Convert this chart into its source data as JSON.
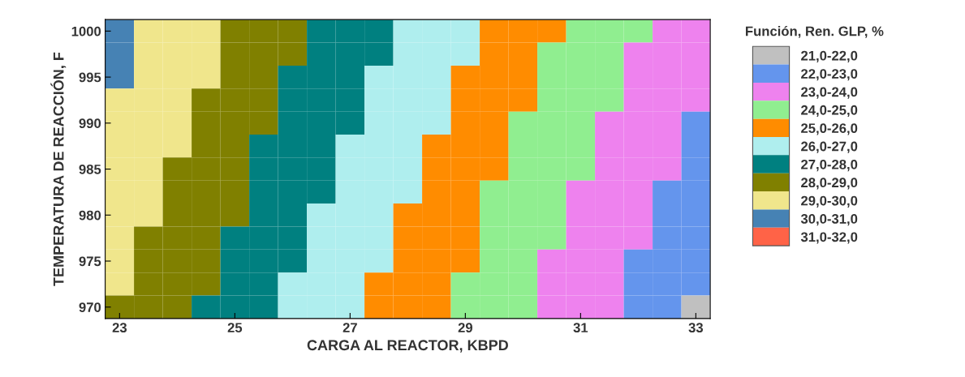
{
  "chart_data": {
    "type": "heatmap",
    "xlabel": "CARGA AL REACTOR, KBPD",
    "ylabel": "TEMPERATURA DE REACCIÓN, F",
    "legend_title": "Función, Ren. GLP, %",
    "categories": [
      "23",
      null,
      null,
      null,
      "25",
      null,
      null,
      null,
      "27",
      null,
      null,
      null,
      "29",
      null,
      null,
      null,
      "31",
      null,
      null,
      null,
      "33"
    ],
    "y_categories": [
      "1000",
      null,
      "995",
      null,
      "990",
      null,
      "985",
      null,
      "980",
      null,
      "975",
      null,
      "970"
    ],
    "cells": [
      [
        30.3,
        29.9,
        29.6,
        29.2,
        28.9,
        28.5,
        28.2,
        27.8,
        27.5,
        27.1,
        26.8,
        26.4,
        26.1,
        25.7,
        25.4,
        25.0,
        24.7,
        24.3,
        24.0,
        23.7,
        23.3
      ],
      [
        30.1,
        29.8,
        29.4,
        29.1,
        28.8,
        28.4,
        28.1,
        27.7,
        27.4,
        27.0,
        26.7,
        26.3,
        26.0,
        25.6,
        25.3,
        24.9,
        24.6,
        24.2,
        23.9,
        23.5,
        23.2
      ],
      [
        30.0,
        29.7,
        29.3,
        29.0,
        28.6,
        28.3,
        27.9,
        27.6,
        27.2,
        26.9,
        26.5,
        26.2,
        25.9,
        25.5,
        25.2,
        24.8,
        24.5,
        24.1,
        23.8,
        23.4,
        23.1
      ],
      [
        29.9,
        29.6,
        29.2,
        28.9,
        28.5,
        28.2,
        27.8,
        27.5,
        27.1,
        26.8,
        26.4,
        26.1,
        25.7,
        25.4,
        25.0,
        24.7,
        24.4,
        24.0,
        23.7,
        23.3,
        23.0
      ],
      [
        29.8,
        29.5,
        29.1,
        28.8,
        28.4,
        28.1,
        27.7,
        27.4,
        27.0,
        26.7,
        26.3,
        26.0,
        25.6,
        25.3,
        24.9,
        24.6,
        24.2,
        23.9,
        23.5,
        23.2,
        22.9
      ],
      [
        29.7,
        29.3,
        29.0,
        28.6,
        28.3,
        27.9,
        27.6,
        27.3,
        26.9,
        26.6,
        26.2,
        25.9,
        25.5,
        25.2,
        24.8,
        24.5,
        24.1,
        23.8,
        23.4,
        23.1,
        22.7
      ],
      [
        29.6,
        29.2,
        28.9,
        28.5,
        28.2,
        27.8,
        27.5,
        27.1,
        26.8,
        26.4,
        26.1,
        25.8,
        25.4,
        25.1,
        24.7,
        24.4,
        24.0,
        23.7,
        23.3,
        23.0,
        22.6
      ],
      [
        29.5,
        29.1,
        28.8,
        28.4,
        28.1,
        27.7,
        27.4,
        27.0,
        26.7,
        26.3,
        26.0,
        25.6,
        25.3,
        24.9,
        24.6,
        24.2,
        23.9,
        23.6,
        23.2,
        22.9,
        22.5
      ],
      [
        29.4,
        29.0,
        28.7,
        28.3,
        28.0,
        27.6,
        27.3,
        26.9,
        26.6,
        26.2,
        25.9,
        25.5,
        25.2,
        24.8,
        24.5,
        24.1,
        23.8,
        23.4,
        23.1,
        22.8,
        22.4
      ],
      [
        29.2,
        28.9,
        28.5,
        28.2,
        27.8,
        27.5,
        27.1,
        26.8,
        26.5,
        26.1,
        25.8,
        25.4,
        25.1,
        24.7,
        24.4,
        24.0,
        23.7,
        23.3,
        23.0,
        22.6,
        22.3
      ],
      [
        29.1,
        28.8,
        28.4,
        28.1,
        27.7,
        27.4,
        27.0,
        26.7,
        26.3,
        26.0,
        25.6,
        25.3,
        25.0,
        24.6,
        24.3,
        23.9,
        23.6,
        23.2,
        22.9,
        22.5,
        22.2
      ],
      [
        29.0,
        28.7,
        28.3,
        28.0,
        27.6,
        27.3,
        26.9,
        26.6,
        26.2,
        25.9,
        25.5,
        25.2,
        24.8,
        24.5,
        24.1,
        23.8,
        23.4,
        23.1,
        22.7,
        22.4,
        22.1
      ],
      [
        28.9,
        28.6,
        28.2,
        27.9,
        27.5,
        27.2,
        26.8,
        26.5,
        26.1,
        25.8,
        25.4,
        25.1,
        24.7,
        24.4,
        24.0,
        23.7,
        23.3,
        23.0,
        22.6,
        22.3,
        21.9
      ]
    ],
    "clim": [
      21,
      32
    ],
    "cticks": [
      {
        "value": 21.5,
        "label": "21,0-22,0"
      },
      {
        "value": 22.5,
        "label": "22,0-23,0"
      },
      {
        "value": 23.5,
        "label": "23,0-24,0"
      },
      {
        "value": 24.5,
        "label": "24,0-25,0"
      },
      {
        "value": 25.5,
        "label": "25,0-26,0"
      },
      {
        "value": 26.5,
        "label": "26,0-27,0"
      },
      {
        "value": 27.5,
        "label": "27,0-28,0"
      },
      {
        "value": 28.5,
        "label": "28,0-29,0"
      },
      {
        "value": 29.5,
        "label": "29,0-30,0"
      },
      {
        "value": 30.5,
        "label": "30,0-31,0"
      },
      {
        "value": 31.5,
        "label": "31,0-32,0"
      }
    ],
    "colors": [
      "#c0c0c0",
      "#6495ed",
      "#ee82ee",
      "#90ee90",
      "#ff8c00",
      "#afeeee",
      "#008080",
      "#808000",
      "#f0e68c",
      "#4682b4",
      "#ff6347"
    ]
  }
}
